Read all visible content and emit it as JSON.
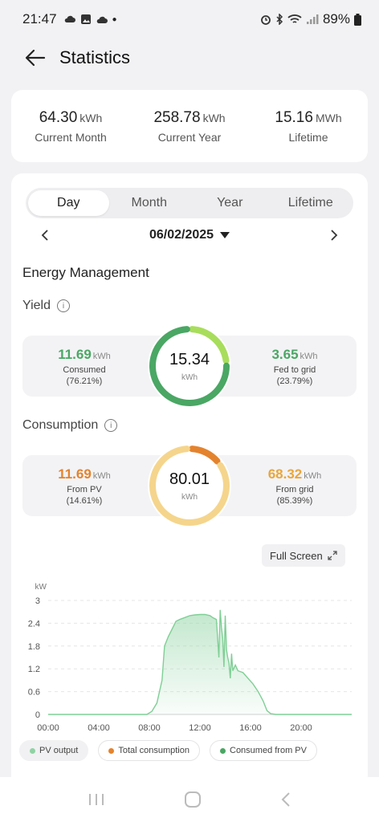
{
  "status_bar": {
    "time": "21:47",
    "battery": "89%"
  },
  "header": {
    "title": "Statistics"
  },
  "summary": [
    {
      "value": "64.30",
      "unit": "kWh",
      "label": "Current Month"
    },
    {
      "value": "258.78",
      "unit": "kWh",
      "label": "Current Year"
    },
    {
      "value": "15.16",
      "unit": "MWh",
      "label": "Lifetime"
    }
  ],
  "tabs": [
    "Day",
    "Month",
    "Year",
    "Lifetime"
  ],
  "active_tab": "Day",
  "date": "06/02/2025",
  "energy": {
    "title": "Energy Management",
    "yield": {
      "title": "Yield",
      "total": "15.34",
      "unit": "kWh",
      "left": {
        "value": "11.69",
        "unit": "kWh",
        "label": "Consumed",
        "pct": "(76.21%)",
        "fraction": 0.7621
      },
      "right": {
        "value": "3.65",
        "unit": "kWh",
        "label": "Fed to grid",
        "pct": "(23.79%)",
        "fraction": 0.2379
      }
    },
    "consumption": {
      "title": "Consumption",
      "total": "80.01",
      "unit": "kWh",
      "left": {
        "value": "11.69",
        "unit": "kWh",
        "label": "From PV",
        "pct": "(14.61%)",
        "fraction": 0.1461
      },
      "right": {
        "value": "68.32",
        "unit": "kWh",
        "label": "From grid",
        "pct": "(85.39%)",
        "fraction": 0.8539
      }
    }
  },
  "fullscreen_label": "Full Screen",
  "colors": {
    "pv": "#4aa764",
    "pv_light": "#a8dd5c",
    "consumption": "#e4832e",
    "grid": "#f5d58c"
  },
  "chart_data": {
    "type": "area",
    "ylabel": "kW",
    "ylim": [
      0,
      3
    ],
    "yticks": [
      "0",
      "0.6",
      "1.2",
      "1.8",
      "2.4",
      "3"
    ],
    "xlim": [
      0,
      24
    ],
    "xticks": [
      "00:00",
      "04:00",
      "08:00",
      "12:00",
      "16:00",
      "20:00"
    ],
    "series": [
      {
        "name": "PV output",
        "x": [
          0,
          7.8,
          8.2,
          8.6,
          9.0,
          9.2,
          9.5,
          9.8,
          10.1,
          10.4,
          10.8,
          11.2,
          11.6,
          12.0,
          12.4,
          12.8,
          13.0,
          13.3,
          13.5,
          13.6,
          13.7,
          13.8,
          13.9,
          14.0,
          14.1,
          14.2,
          14.3,
          14.4,
          14.5,
          14.6,
          14.8,
          15.0,
          15.4,
          15.8,
          16.2,
          16.6,
          17.0,
          17.3,
          17.6,
          18.0,
          24
        ],
        "y": [
          0,
          0,
          0.08,
          0.3,
          0.9,
          1.8,
          2.05,
          2.25,
          2.45,
          2.5,
          2.55,
          2.6,
          2.62,
          2.63,
          2.63,
          2.6,
          2.55,
          2.5,
          1.5,
          2.75,
          2.3,
          2.0,
          1.25,
          2.6,
          1.7,
          1.5,
          1.35,
          0.95,
          1.6,
          1.15,
          1.3,
          1.15,
          1.1,
          0.95,
          0.8,
          0.6,
          0.35,
          0.1,
          0.02,
          0,
          0
        ]
      },
      {
        "name": "Total consumption"
      },
      {
        "name": "Consumed from PV"
      }
    ],
    "legend": [
      {
        "name": "PV output",
        "color": "#8fd3a3",
        "active": true
      },
      {
        "name": "Total consumption",
        "color": "#e4832e",
        "active": false
      },
      {
        "name": "Consumed from PV",
        "color": "#4aa764",
        "active": false
      }
    ]
  }
}
